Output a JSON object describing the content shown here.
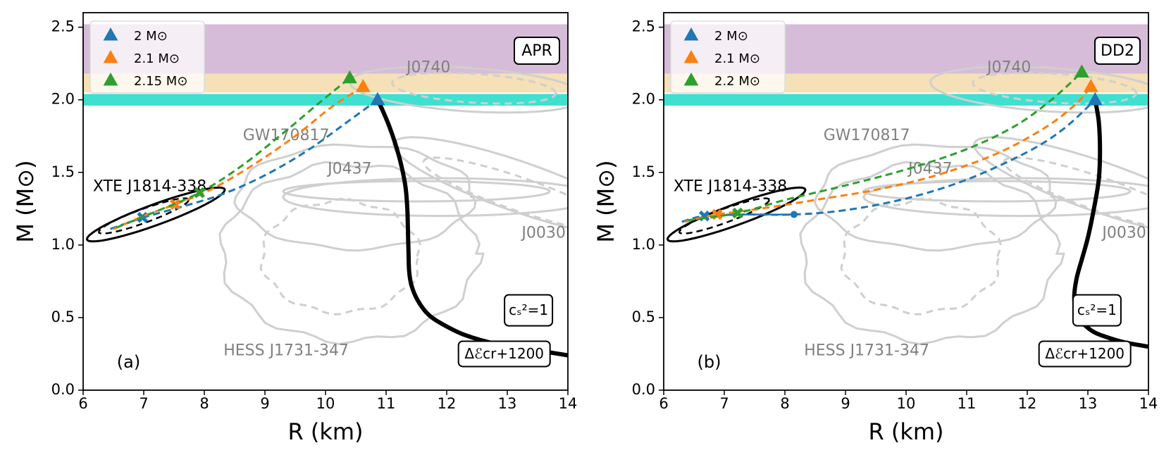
{
  "chart_data": [
    {
      "type": "line",
      "panel_label": "(a)",
      "eos_label": "APR",
      "xlabel": "R (km)",
      "ylabel": "M (M⊙)",
      "xlim": [
        6,
        14
      ],
      "ylim": [
        0,
        2.6
      ],
      "xticks": [
        "6",
        "7",
        "8",
        "9",
        "10",
        "11",
        "12",
        "13",
        "14"
      ],
      "yticks": [
        "0.0",
        "0.5",
        "1.0",
        "1.5",
        "2.0",
        "2.5"
      ],
      "legend": {
        "location": "top-left",
        "entries": [
          {
            "label": "2 M⊙",
            "color": "#1f77b4"
          },
          {
            "label": "2.1 M⊙",
            "color": "#ff7f0e"
          },
          {
            "label": "2.15 M⊙",
            "color": "#2ca02c"
          }
        ]
      },
      "bands": [
        {
          "name": "purple",
          "ymin": 2.18,
          "ymax": 2.52,
          "color": "#d6bcd8"
        },
        {
          "name": "tan",
          "ymin": 2.05,
          "ymax": 2.18,
          "color": "#f5e0b7"
        },
        {
          "name": "turquoise",
          "ymin": 1.96,
          "ymax": 2.04,
          "color": "#40e0d0"
        }
      ],
      "source_labels": [
        {
          "text": "J0740",
          "x": 11.7,
          "y": 2.22
        },
        {
          "text": "GW170817",
          "x": 9.35,
          "y": 1.75
        },
        {
          "text": "J0437",
          "x": 10.4,
          "y": 1.52
        },
        {
          "text": "J0030",
          "x": 13.6,
          "y": 1.08
        },
        {
          "text": "HESS J1731-347",
          "x": 9.35,
          "y": 0.27
        },
        {
          "text": "XTE J1814-338",
          "x": 7.1,
          "y": 1.4
        }
      ],
      "box_labels": [
        {
          "text": "cₛ²=1",
          "x": 13.35,
          "y": 0.55
        },
        {
          "text": "Δℰcr+1200",
          "x": 12.95,
          "y": 0.25
        }
      ],
      "main_curve": {
        "name": "APR + Δℰcr+1200",
        "color": "#000000",
        "x": [
          10.86,
          10.95,
          11.05,
          11.15,
          11.25,
          11.32,
          11.35,
          11.36,
          11.37,
          11.38,
          11.42,
          11.52,
          11.7,
          11.95,
          12.3,
          12.8,
          13.4,
          14.0
        ],
        "y": [
          2.0,
          1.92,
          1.82,
          1.7,
          1.55,
          1.4,
          1.25,
          1.1,
          0.95,
          0.82,
          0.72,
          0.62,
          0.52,
          0.45,
          0.38,
          0.32,
          0.28,
          0.24
        ]
      },
      "series": [
        {
          "name": "2 M⊙",
          "color": "#1f77b4",
          "x": [
            6.45,
            7.0,
            7.6,
            8.3,
            9.0,
            9.7,
            10.4,
            10.86
          ],
          "y": [
            1.11,
            1.19,
            1.26,
            1.35,
            1.48,
            1.65,
            1.86,
            2.0
          ],
          "triangle": [
            10.86,
            2.0
          ],
          "cross": [
            6.98,
            1.19
          ]
        },
        {
          "name": "2.1 M⊙",
          "color": "#ff7f0e",
          "x": [
            6.5,
            7.0,
            7.52,
            8.1,
            8.8,
            9.5,
            10.1,
            10.62
          ],
          "y": [
            1.11,
            1.2,
            1.28,
            1.38,
            1.55,
            1.75,
            1.95,
            2.09
          ],
          "triangle": [
            10.62,
            2.09
          ],
          "cross": [
            7.52,
            1.28
          ]
        },
        {
          "name": "2.15 M⊙",
          "color": "#2ca02c",
          "x": [
            6.55,
            7.2,
            7.92,
            8.6,
            9.3,
            9.9,
            10.4
          ],
          "y": [
            1.12,
            1.23,
            1.36,
            1.54,
            1.77,
            1.98,
            2.15
          ],
          "triangle": [
            10.4,
            2.15
          ],
          "cross": [
            7.92,
            1.36
          ]
        }
      ]
    },
    {
      "type": "line",
      "panel_label": "(b)",
      "eos_label": "DD2",
      "xlabel": "R (km)",
      "ylabel": "M (M⊙)",
      "xlim": [
        6,
        14
      ],
      "ylim": [
        0,
        2.6
      ],
      "xticks": [
        "6",
        "7",
        "8",
        "9",
        "10",
        "11",
        "12",
        "13",
        "14"
      ],
      "yticks": [
        "0.0",
        "0.5",
        "1.0",
        "1.5",
        "2.0",
        "2.5"
      ],
      "legend": {
        "location": "top-left",
        "entries": [
          {
            "label": "2 M⊙",
            "color": "#1f77b4"
          },
          {
            "label": "2.1 M⊙",
            "color": "#ff7f0e"
          },
          {
            "label": "2.2 M⊙",
            "color": "#2ca02c"
          }
        ]
      },
      "bands": [
        {
          "name": "purple",
          "ymin": 2.18,
          "ymax": 2.52,
          "color": "#d6bcd8"
        },
        {
          "name": "tan",
          "ymin": 2.05,
          "ymax": 2.18,
          "color": "#f5e0b7"
        },
        {
          "name": "turquoise",
          "ymin": 1.96,
          "ymax": 2.04,
          "color": "#40e0d0"
        }
      ],
      "source_labels": [
        {
          "text": "J0740",
          "x": 11.7,
          "y": 2.22
        },
        {
          "text": "GW170817",
          "x": 9.35,
          "y": 1.75
        },
        {
          "text": "J0437",
          "x": 10.4,
          "y": 1.52
        },
        {
          "text": "J0030",
          "x": 13.6,
          "y": 1.08
        },
        {
          "text": "HESS J1731-347",
          "x": 9.35,
          "y": 0.27
        },
        {
          "text": "XTE J1814-338",
          "x": 7.1,
          "y": 1.4
        }
      ],
      "box_labels": [
        {
          "text": "cₛ²=1",
          "x": 13.15,
          "y": 0.55
        },
        {
          "text": "Δℰcr+1200",
          "x": 12.95,
          "y": 0.25
        }
      ],
      "main_curve": {
        "name": "DD2 + Δℰcr+1200",
        "color": "#000000",
        "x": [
          13.12,
          13.18,
          13.2,
          13.18,
          13.1,
          13.0,
          12.9,
          12.82,
          12.78,
          12.78,
          12.82,
          12.92,
          13.1,
          13.35,
          13.6,
          13.85,
          14.0
        ],
        "y": [
          2.0,
          1.85,
          1.65,
          1.45,
          1.25,
          1.05,
          0.9,
          0.78,
          0.68,
          0.6,
          0.52,
          0.46,
          0.4,
          0.36,
          0.33,
          0.31,
          0.3
        ]
      },
      "series": [
        {
          "name": "2 M⊙",
          "color": "#1f77b4",
          "x": [
            6.3,
            6.67,
            7.3,
            8.15,
            9.0,
            10.0,
            11.0,
            12.0,
            12.6,
            13.12
          ],
          "y": [
            1.16,
            1.2,
            1.21,
            1.21,
            1.24,
            1.32,
            1.45,
            1.64,
            1.8,
            2.0
          ],
          "triangle": [
            13.12,
            2.0
          ],
          "cross": [
            6.67,
            1.2
          ],
          "dot": [
            8.15,
            1.21
          ],
          "solid_segment_x": [
            6.67,
            8.15
          ]
        },
        {
          "name": "2.1 M⊙",
          "color": "#ff7f0e",
          "x": [
            6.35,
            6.88,
            7.6,
            8.5,
            9.5,
            10.5,
            11.5,
            12.3,
            12.8,
            13.05
          ],
          "y": [
            1.16,
            1.21,
            1.25,
            1.31,
            1.38,
            1.48,
            1.63,
            1.81,
            1.97,
            2.09
          ],
          "triangle": [
            13.05,
            2.09
          ],
          "cross": [
            6.88,
            1.21
          ]
        },
        {
          "name": "2.2 M⊙",
          "color": "#2ca02c",
          "x": [
            6.4,
            7.22,
            8.0,
            9.0,
            10.0,
            11.0,
            11.8,
            12.4,
            12.9
          ],
          "y": [
            1.17,
            1.22,
            1.31,
            1.41,
            1.52,
            1.66,
            1.82,
            2.0,
            2.19
          ],
          "triangle": [
            12.9,
            2.19
          ],
          "cross": [
            7.22,
            1.22
          ]
        }
      ]
    }
  ]
}
